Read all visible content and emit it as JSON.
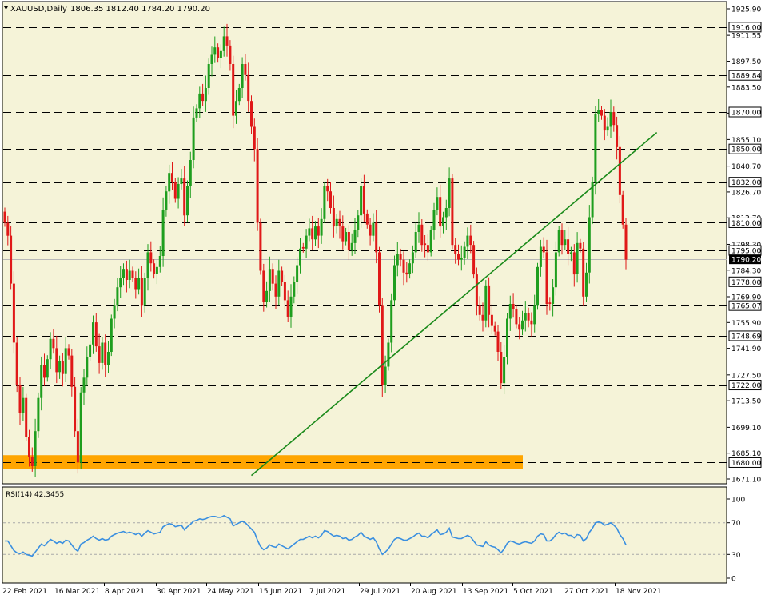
{
  "header": {
    "symbol": "XAUUSD,Daily",
    "ohlc": "1806.35 1812.40 1784.20 1790.20"
  },
  "rsi_header": "RSI(14) 42.3455",
  "colors": {
    "background": "#f5f3d8",
    "bull": "#1e9e1e",
    "bear": "#e01818",
    "support_zone": "#ffa500",
    "trendline": "#1a8a1a",
    "rsi_line": "#3a8fe0"
  },
  "chart_data": [
    {
      "type": "candlestick",
      "title": "XAUUSD,Daily",
      "y_axis_ticks": [
        "1925.90",
        "1911.55",
        "1897.50",
        "1883.50",
        "1869.40",
        "1855.10",
        "1840.70",
        "1826.70",
        "1812.70",
        "1798.30",
        "1784.30",
        "1769.90",
        "1755.90",
        "1741.90",
        "1727.50",
        "1713.50",
        "1699.10",
        "1685.10",
        "1671.10"
      ],
      "ylim": [
        1668.5,
        1929.8
      ],
      "x_axis_labels": [
        "22 Feb 2021",
        "16 Mar 2021",
        "8 Apr 2021",
        "30 Apr 2021",
        "24 May 2021",
        "15 Jun 2021",
        "7 Jul 2021",
        "29 Jul 2021",
        "20 Aug 2021",
        "13 Sep 2021",
        "5 Oct 2021",
        "27 Oct 2021",
        "18 Nov 2021"
      ],
      "horizontal_levels": [
        "1916.00",
        "1889.84",
        "1870.00",
        "1850.00",
        "1832.00",
        "1810.00",
        "1795.00",
        "1778.00",
        "1765.07",
        "1748.69",
        "1722.00",
        "1680.00"
      ],
      "current_price": "1790.20",
      "support_zone": [
        1676.5,
        1684.0
      ],
      "trendline": [
        {
          "x": 81,
          "y": 1673
        },
        {
          "x": 192,
          "y": 1828
        }
      ],
      "grid": false,
      "closes": [
        1810,
        1803,
        1777,
        1745,
        1722,
        1707,
        1715,
        1694,
        1683,
        1678,
        1697,
        1715,
        1733,
        1726,
        1736,
        1747,
        1742,
        1729,
        1735,
        1728,
        1742,
        1738,
        1721,
        1697,
        1680,
        1718,
        1726,
        1737,
        1744,
        1756,
        1743,
        1734,
        1745,
        1733,
        1740,
        1758,
        1765,
        1775,
        1780,
        1785,
        1779,
        1784,
        1780,
        1774,
        1780,
        1765,
        1780,
        1794,
        1788,
        1782,
        1786,
        1792,
        1817,
        1827,
        1837,
        1832,
        1823,
        1831,
        1834,
        1814,
        1830,
        1844,
        1867,
        1872,
        1880,
        1876,
        1883,
        1896,
        1901,
        1905,
        1899,
        1903,
        1911,
        1906,
        1896,
        1868,
        1876,
        1883,
        1896,
        1890,
        1876,
        1862,
        1850,
        1810,
        1784,
        1767,
        1773,
        1785,
        1777,
        1770,
        1784,
        1778,
        1768,
        1759,
        1770,
        1778,
        1787,
        1796,
        1796,
        1803,
        1807,
        1801,
        1808,
        1803,
        1812,
        1830,
        1827,
        1818,
        1808,
        1812,
        1808,
        1800,
        1805,
        1795,
        1799,
        1806,
        1814,
        1830,
        1815,
        1809,
        1803,
        1810,
        1794,
        1765,
        1722,
        1732,
        1745,
        1768,
        1787,
        1793,
        1790,
        1783,
        1782,
        1788,
        1794,
        1805,
        1809,
        1798,
        1798,
        1794,
        1806,
        1817,
        1824,
        1808,
        1813,
        1818,
        1834,
        1798,
        1793,
        1790,
        1791,
        1797,
        1803,
        1798,
        1782,
        1765,
        1760,
        1757,
        1776,
        1760,
        1754,
        1751,
        1740,
        1723,
        1737,
        1758,
        1766,
        1763,
        1755,
        1752,
        1757,
        1761,
        1757,
        1755,
        1765,
        1786,
        1797,
        1794,
        1766,
        1766,
        1775,
        1794,
        1806,
        1798,
        1801,
        1793,
        1794,
        1782,
        1799,
        1796,
        1770,
        1783,
        1813,
        1832,
        1869,
        1871,
        1868,
        1860,
        1862,
        1870,
        1863,
        1851,
        1825,
        1809,
        1790
      ]
    },
    {
      "type": "line",
      "title": "RSI(14) 42.3455",
      "ylim": [
        0,
        100
      ],
      "y_axis_ticks": [
        "100",
        "70",
        "30",
        "0"
      ],
      "levels": [
        70,
        30
      ],
      "series": [
        {
          "values": [
            47,
            47,
            41,
            35,
            32,
            31,
            33,
            30,
            29,
            28,
            33,
            38,
            43,
            41,
            45,
            49,
            47,
            44,
            46,
            44,
            48,
            47,
            42,
            37,
            34,
            43,
            45,
            48,
            50,
            53,
            50,
            48,
            50,
            48,
            49,
            53,
            55,
            57,
            58,
            59,
            57,
            58,
            57,
            55,
            57,
            53,
            57,
            60,
            58,
            56,
            57,
            58,
            65,
            67,
            69,
            68,
            65,
            66,
            67,
            61,
            65,
            68,
            72,
            73,
            75,
            74,
            75,
            77,
            78,
            78,
            77,
            77,
            79,
            77,
            75,
            66,
            68,
            70,
            72,
            70,
            66,
            62,
            58,
            48,
            40,
            36,
            38,
            42,
            40,
            39,
            43,
            41,
            39,
            37,
            40,
            43,
            46,
            49,
            49,
            51,
            53,
            51,
            53,
            51,
            54,
            60,
            59,
            56,
            53,
            54,
            53,
            50,
            51,
            48,
            49,
            52,
            54,
            58,
            53,
            51,
            49,
            51,
            46,
            37,
            30,
            33,
            37,
            43,
            49,
            51,
            50,
            48,
            48,
            50,
            52,
            55,
            57,
            53,
            53,
            51,
            55,
            58,
            61,
            55,
            56,
            58,
            63,
            52,
            51,
            50,
            50,
            52,
            54,
            52,
            47,
            42,
            41,
            40,
            46,
            42,
            40,
            39,
            36,
            32,
            37,
            44,
            47,
            46,
            44,
            43,
            45,
            46,
            45,
            44,
            47,
            53,
            56,
            55,
            47,
            47,
            50,
            55,
            58,
            56,
            57,
            54,
            54,
            51,
            55,
            54,
            47,
            50,
            58,
            63,
            70,
            71,
            70,
            67,
            68,
            70,
            67,
            63,
            55,
            50,
            42
          ]
        }
      ]
    }
  ]
}
